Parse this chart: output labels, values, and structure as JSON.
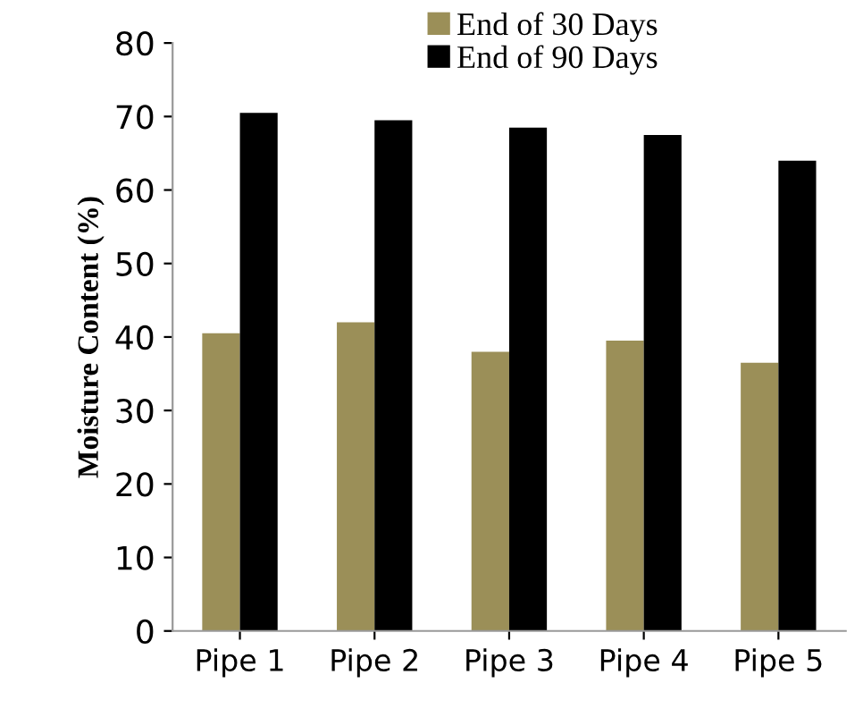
{
  "chart_data": {
    "type": "bar",
    "ylabel": "Moisture Content (%)",
    "categories": [
      "Pipe 1",
      "Pipe 2",
      "Pipe 3",
      "Pipe 4",
      "Pipe 5"
    ],
    "series": [
      {
        "name": "End of 30 Days",
        "color": "#9b8f58",
        "values": [
          40.5,
          42,
          38,
          39.5,
          36.5
        ]
      },
      {
        "name": "End of 90 Days",
        "color": "#000000",
        "values": [
          70.5,
          69.5,
          68.5,
          67.5,
          64
        ]
      }
    ],
    "ylim": [
      0,
      80
    ],
    "yticks": [
      0,
      10,
      20,
      30,
      40,
      50,
      60,
      70,
      80
    ],
    "grid": false,
    "legend": "top"
  }
}
